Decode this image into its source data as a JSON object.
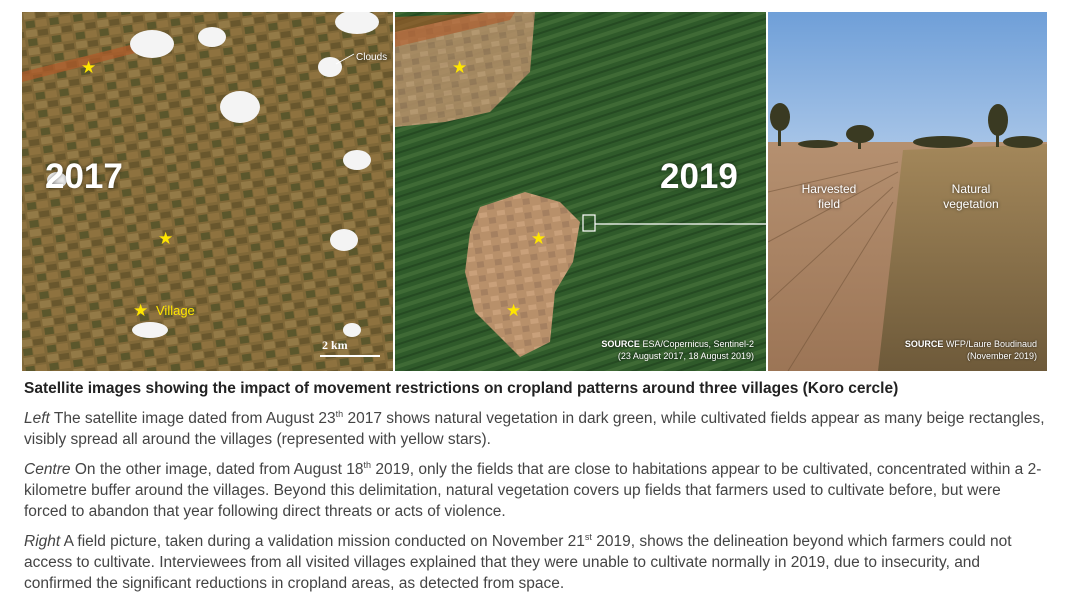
{
  "panels": {
    "left": {
      "year": "2017",
      "village_label": "Village",
      "clouds_label": "Clouds",
      "scale_label": "2 km"
    },
    "centre": {
      "year": "2019",
      "source_prefix": "SOURCE",
      "source_text": "ESA/Copernicus, Sentinel-2",
      "source_dates": "(23 August 2017, 18 August 2019)"
    },
    "right": {
      "label_harvested": "Harvested field",
      "label_natural": "Natural vegetation",
      "source_prefix": "SOURCE",
      "source_text": "WFP/Laure Boudinaud",
      "source_dates": "(November 2019)"
    }
  },
  "caption": {
    "title": "Satellite images showing the impact of movement restrictions on cropland patterns around three villages (Koro cercle)",
    "left_lead": "Left",
    "left_a": " The satellite image dated from August 23",
    "left_sup": "th",
    "left_b": " 2017 shows natural vegetation in dark green, while cultivated fields appear as many beige rectangles, visibly spread all around the villages (represented with yellow stars).",
    "centre_lead": "Centre",
    "centre_a": " On the other image, dated from August 18",
    "centre_sup": "th",
    "centre_b": " 2019, only the fields that are close to habitations appear to be cultivated, concentrated within a 2-kilometre buffer around the villages. Beyond this delimitation, natural vegetation covers up fields that farmers used to cultivate before, but were forced to abandon that year following direct threats or acts of violence.",
    "right_lead": "Right",
    "right_a": " A field picture, taken during a validation mission conducted on November 21",
    "right_sup": "st",
    "right_b": " 2019, shows the delineation beyond which farmers could not access to cultivate. Interviewees from all visited villages explained that they were unable to cultivate normally in 2019, due to insecurity, and confirmed the significant reductions in cropland areas, as detected from space."
  },
  "colors": {
    "star": "#ffe600",
    "farmland": "#8a6e3c",
    "vegetation": "#2f5a2a",
    "sky": "#6f9fd8"
  }
}
